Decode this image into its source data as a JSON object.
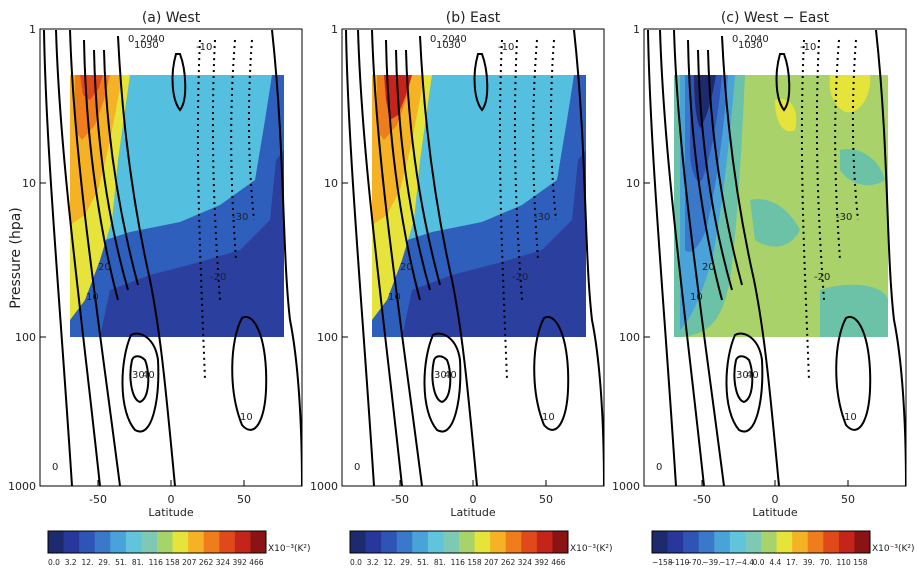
{
  "figure": {
    "ylabel": "Pressure (hpa)",
    "xlabel": "Latitude",
    "colorbar_unit": "X10⁻³(K²)"
  },
  "chart_data": [
    {
      "type": "heatmap",
      "title": "(a) West",
      "xlabel": "Latitude",
      "ylabel": "Pressure (hpa)",
      "x_ticks": [
        -50,
        0,
        50
      ],
      "y_ticks": [
        1,
        10,
        100,
        1000
      ],
      "xlim": [
        -90,
        90
      ],
      "ylim": [
        1000,
        1
      ],
      "y_scale": "log",
      "shading_extent": {
        "lat": [
          -75,
          75
        ],
        "pressure": [
          2,
          100
        ]
      },
      "contour_labels": [
        "0",
        "10",
        "20",
        "30",
        "40",
        "-10",
        "-20",
        "-30",
        "10",
        "20",
        "30",
        "40",
        "10",
        "0"
      ],
      "colorbar_levels": [
        "0.0",
        "3.2",
        "12.",
        "29.",
        "51.",
        "81.",
        "116",
        "158",
        "207",
        "262",
        "324",
        "392",
        "466"
      ]
    },
    {
      "type": "heatmap",
      "title": "(b) East",
      "xlabel": "Latitude",
      "x_ticks": [
        -50,
        0,
        50
      ],
      "y_ticks": [
        1,
        10,
        100,
        1000
      ],
      "xlim": [
        -90,
        90
      ],
      "ylim": [
        1000,
        1
      ],
      "y_scale": "log",
      "shading_extent": {
        "lat": [
          -75,
          75
        ],
        "pressure": [
          2,
          100
        ]
      },
      "contour_labels": [
        "0",
        "10",
        "20",
        "30",
        "40",
        "-10",
        "-20",
        "-30",
        "10",
        "20",
        "30",
        "40",
        "10",
        "0"
      ],
      "colorbar_levels": [
        "0.0",
        "3.2",
        "12.",
        "29.",
        "51.",
        "81.",
        "116",
        "158",
        "207",
        "262",
        "324",
        "392",
        "466"
      ]
    },
    {
      "type": "heatmap",
      "title": "(c) West − East",
      "xlabel": "Latitude",
      "x_ticks": [
        -50,
        0,
        50
      ],
      "y_ticks": [
        1,
        10,
        100,
        1000
      ],
      "xlim": [
        -90,
        90
      ],
      "ylim": [
        1000,
        1
      ],
      "y_scale": "log",
      "shading_extent": {
        "lat": [
          -75,
          75
        ],
        "pressure": [
          2,
          100
        ]
      },
      "contour_labels": [
        "0",
        "10",
        "20",
        "30",
        "40",
        "-10",
        "-20",
        "-30",
        "10",
        "20",
        "30",
        "40",
        "10",
        "0"
      ],
      "colorbar_levels": [
        "−158",
        "−110",
        "−70.",
        "−39.",
        "−17.",
        "−4.4",
        "0.0",
        "4.4",
        "17.",
        "39.",
        "70.",
        "110",
        "158"
      ]
    }
  ],
  "colors": {
    "scale": [
      "#1e2a6e",
      "#27389a",
      "#2e55b5",
      "#3a78c9",
      "#4aa3d8",
      "#62c3dc",
      "#7dc9b3",
      "#a6d36a",
      "#e6e43a",
      "#f5b224",
      "#ef7d1c",
      "#e04a1a",
      "#c5241b",
      "#8a1313"
    ],
    "west_fill_low": "#2a3f9e",
    "west_fill_mid": "#2f5fbd",
    "west_fill_high": "#55bfe0",
    "diff_fill_main": "#a9d26a",
    "diff_fill_teal": "#6cc2a6"
  }
}
